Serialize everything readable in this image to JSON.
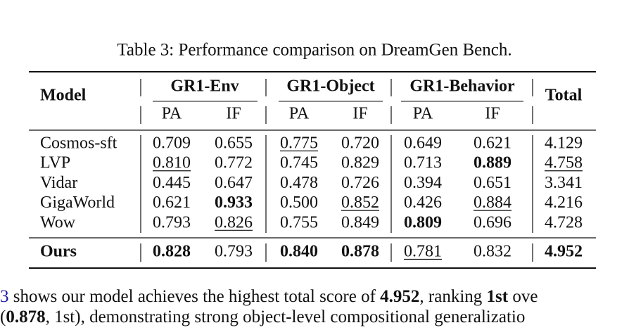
{
  "caption": "Table 3: Performance comparison on DreamGen Bench.",
  "table": {
    "header": {
      "model": "Model",
      "groups": [
        "GR1-Env",
        "GR1-Object",
        "GR1-Behavior"
      ],
      "subheaders": [
        "PA",
        "IF",
        "PA",
        "IF",
        "PA",
        "IF"
      ],
      "total": "Total"
    },
    "rows": [
      {
        "model": {
          "text": "Cosmos-sft"
        },
        "cells": [
          {
            "text": "0.709"
          },
          {
            "text": "0.655"
          },
          {
            "text": "0.775",
            "underline": true
          },
          {
            "text": "0.720"
          },
          {
            "text": "0.649"
          },
          {
            "text": "0.621"
          },
          {
            "text": "4.129"
          }
        ]
      },
      {
        "model": {
          "text": "LVP"
        },
        "cells": [
          {
            "text": "0.810",
            "underline": true
          },
          {
            "text": "0.772"
          },
          {
            "text": "0.745"
          },
          {
            "text": "0.829"
          },
          {
            "text": "0.713"
          },
          {
            "text": "0.889",
            "bold": true
          },
          {
            "text": "4.758",
            "underline": true
          }
        ]
      },
      {
        "model": {
          "text": "Vidar"
        },
        "cells": [
          {
            "text": "0.445"
          },
          {
            "text": "0.647"
          },
          {
            "text": "0.478"
          },
          {
            "text": "0.726"
          },
          {
            "text": "0.394"
          },
          {
            "text": "0.651"
          },
          {
            "text": "3.341"
          }
        ]
      },
      {
        "model": {
          "text": "GigaWorld"
        },
        "cells": [
          {
            "text": "0.621"
          },
          {
            "text": "0.933",
            "bold": true
          },
          {
            "text": "0.500"
          },
          {
            "text": "0.852",
            "underline": true
          },
          {
            "text": "0.426"
          },
          {
            "text": "0.884",
            "underline": true
          },
          {
            "text": "4.216"
          }
        ]
      },
      {
        "model": {
          "text": "Wow"
        },
        "cells": [
          {
            "text": "0.793"
          },
          {
            "text": "0.826",
            "underline": true
          },
          {
            "text": "0.755"
          },
          {
            "text": "0.849"
          },
          {
            "text": "0.809",
            "bold": true
          },
          {
            "text": "0.696"
          },
          {
            "text": "4.728"
          }
        ]
      }
    ],
    "final_row": {
      "model": {
        "text": "Ours",
        "bold": true
      },
      "cells": [
        {
          "text": "0.828",
          "bold": true
        },
        {
          "text": "0.793"
        },
        {
          "text": "0.840",
          "bold": true
        },
        {
          "text": "0.878",
          "bold": true
        },
        {
          "text": "0.781",
          "underline": true
        },
        {
          "text": "0.832"
        },
        {
          "text": "4.952",
          "bold": true
        }
      ]
    }
  },
  "paragraph": [
    [
      {
        "text": "3",
        "link": true
      },
      {
        "text": " shows our model achieves the highest total score of "
      },
      {
        "text": "4.952",
        "bold": true
      },
      {
        "text": ", ranking "
      },
      {
        "text": "1st",
        "bold": true
      },
      {
        "text": " ove"
      }
    ],
    [
      {
        "text": "("
      },
      {
        "text": "0.878",
        "bold": true
      },
      {
        "text": ", 1st), demonstrating strong object-level compositional generalizatio"
      }
    ]
  ]
}
